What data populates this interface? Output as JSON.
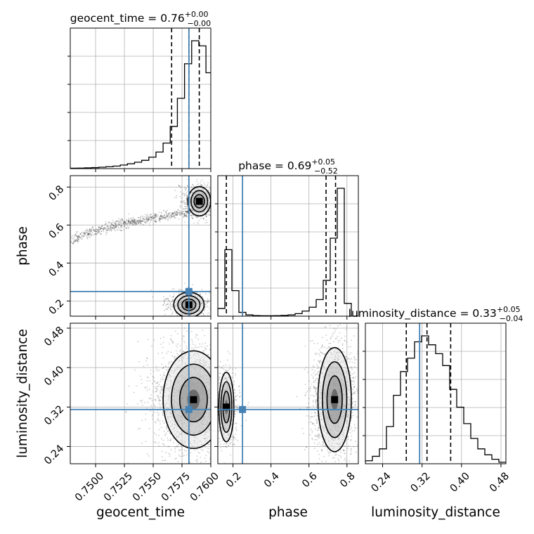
{
  "chart_data": {
    "type": "corner",
    "parameters": [
      "geocent_time",
      "phase",
      "luminosity_distance"
    ],
    "axis_labels": [
      "geocent_time",
      "phase",
      "luminosity_distance"
    ],
    "truths": [
      0.7581,
      0.25,
      0.315
    ],
    "truth_color": "#4682b4",
    "ranges": [
      [
        0.7478,
        0.76
      ],
      [
        0.12,
        0.86
      ],
      [
        0.205,
        0.49
      ]
    ],
    "ticks": {
      "geocent_time": [
        "0.7500",
        "0.7525",
        "0.7550",
        "0.7575",
        "0.7600"
      ],
      "phase": [
        "0.2",
        "0.4",
        "0.6",
        "0.8"
      ],
      "luminosity_distance": [
        "0.24",
        "0.32",
        "0.40",
        "0.48"
      ]
    },
    "titles": [
      {
        "param": "geocent_time",
        "label": "geocent_time = 0.76",
        "plus": "+0.00",
        "minus": "−0.00"
      },
      {
        "param": "phase",
        "label": "phase = 0.69",
        "plus": "+0.05",
        "minus": "−0.52"
      },
      {
        "param": "luminosity_distance",
        "label": "luminosity_distance = 0.33",
        "plus": "+0.05",
        "minus": "−0.04"
      }
    ],
    "quantiles": {
      "geocent_time": [
        0.7566,
        0.7581,
        0.759
      ],
      "phase": [
        0.165,
        0.69,
        0.74
      ],
      "luminosity_distance": [
        0.288,
        0.33,
        0.378
      ]
    },
    "histograms": {
      "geocent_time": {
        "edges": [
          0.7478,
          0.74842,
          0.74904,
          0.74966,
          0.75028,
          0.7509,
          0.75152,
          0.75214,
          0.75276,
          0.75338,
          0.754,
          0.75462,
          0.75524,
          0.75586,
          0.75648,
          0.7571,
          0.75772,
          0.75834,
          0.75896,
          0.75958,
          0.76
        ],
        "counts": [
          0.003,
          0.004,
          0.006,
          0.008,
          0.011,
          0.015,
          0.02,
          0.028,
          0.038,
          0.05,
          0.065,
          0.09,
          0.13,
          0.2,
          0.33,
          0.55,
          0.82,
          1.0,
          0.96,
          0.75
        ]
      },
      "phase": {
        "edges": [
          0.12,
          0.157,
          0.194,
          0.231,
          0.268,
          0.305,
          0.342,
          0.379,
          0.416,
          0.453,
          0.49,
          0.527,
          0.564,
          0.601,
          0.638,
          0.675,
          0.712,
          0.749,
          0.786,
          0.823,
          0.86
        ],
        "counts": [
          0.06,
          0.52,
          0.2,
          0.03,
          0.01,
          0.005,
          0.003,
          0.003,
          0.004,
          0.006,
          0.01,
          0.02,
          0.04,
          0.07,
          0.13,
          0.28,
          0.61,
          1.0,
          0.1,
          0.0
        ]
      },
      "luminosity_distance": {
        "edges": [
          0.205,
          0.21925,
          0.2335,
          0.24775,
          0.262,
          0.27625,
          0.2905,
          0.30475,
          0.319,
          0.33325,
          0.3475,
          0.36175,
          0.376,
          0.39025,
          0.4045,
          0.41875,
          0.433,
          0.44725,
          0.4615,
          0.47575,
          0.49
        ],
        "counts": [
          0.02,
          0.05,
          0.1,
          0.25,
          0.46,
          0.62,
          0.71,
          0.82,
          0.86,
          0.8,
          0.74,
          0.66,
          0.5,
          0.38,
          0.27,
          0.17,
          0.1,
          0.06,
          0.03,
          0.01
        ]
      }
    },
    "modes": {
      "geocent_time_vs_phase": [
        {
          "x": 0.759,
          "y": 0.725,
          "sx": 0.00045,
          "sy": 0.035,
          "w": 0.72
        },
        {
          "x": 0.7581,
          "y": 0.18,
          "sx": 0.0006,
          "sy": 0.03,
          "w": 0.28
        }
      ],
      "geocent_time_vs_luminosity_distance": [
        {
          "x": 0.7585,
          "y": 0.335,
          "sx": 0.0012,
          "sy": 0.045,
          "w": 1.0
        }
      ],
      "phase_vs_luminosity_distance": [
        {
          "x": 0.735,
          "y": 0.335,
          "sx": 0.04,
          "sy": 0.048,
          "w": 0.72
        },
        {
          "x": 0.165,
          "y": 0.32,
          "sx": 0.018,
          "sy": 0.032,
          "w": 0.28
        }
      ]
    }
  }
}
